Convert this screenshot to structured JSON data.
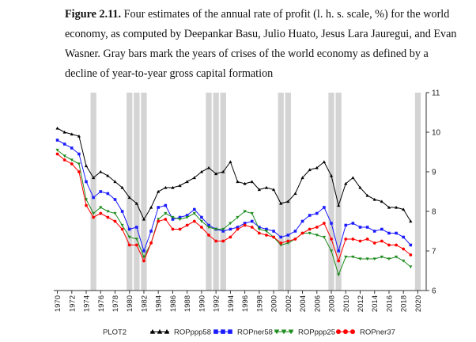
{
  "caption": {
    "figure_label": "Figure 2.11.",
    "text": " Four estimates of the annual rate of profit (l. h. s. scale, %) for the world economy, as computed by Deepankar Basu, Julio Huato, Jesus Lara Jauregui, and Evan Wasner. Gray bars mark the years of crises of the world economy as defined by a decline of year-to-year gross capital formation"
  },
  "chart_data": {
    "type": "line",
    "x": [
      1970,
      1971,
      1972,
      1973,
      1974,
      1975,
      1976,
      1977,
      1978,
      1979,
      1980,
      1981,
      1982,
      1983,
      1984,
      1985,
      1986,
      1987,
      1988,
      1989,
      1990,
      1991,
      1992,
      1993,
      1994,
      1995,
      1996,
      1997,
      1998,
      1999,
      2000,
      2001,
      2002,
      2003,
      2004,
      2005,
      2006,
      2007,
      2008,
      2009,
      2010,
      2011,
      2012,
      2013,
      2014,
      2015,
      2016,
      2017,
      2018,
      2019
    ],
    "xlim": [
      1969.5,
      2020.5
    ],
    "xticks": [
      1970,
      1972,
      1974,
      1976,
      1978,
      1980,
      1982,
      1984,
      1986,
      1988,
      1990,
      1992,
      1994,
      1996,
      1998,
      2000,
      2002,
      2004,
      2006,
      2008,
      2010,
      2012,
      2014,
      2016,
      2018,
      2020
    ],
    "y_right_ticks": [
      6,
      7,
      8,
      9,
      10,
      11
    ],
    "ylim": [
      6,
      11
    ],
    "y_axis_position": "right",
    "crisis_years": [
      1975,
      1980,
      1981,
      1982,
      1991,
      1992,
      1993,
      2001,
      2002,
      2008,
      2009,
      2020
    ],
    "legend": {
      "prefix": "PLOT2",
      "position": "bottom"
    },
    "series": [
      {
        "name": "ROPppp58",
        "color": "#000000",
        "marker": "triangle-up",
        "values": [
          10.1,
          10.0,
          9.95,
          9.9,
          9.15,
          8.85,
          9.0,
          8.9,
          8.75,
          8.6,
          8.35,
          8.2,
          7.8,
          8.1,
          8.5,
          8.6,
          8.6,
          8.65,
          8.75,
          8.85,
          9.0,
          9.1,
          8.95,
          9.0,
          9.25,
          8.75,
          8.7,
          8.75,
          8.55,
          8.6,
          8.55,
          8.2,
          8.25,
          8.45,
          8.85,
          9.05,
          9.1,
          9.25,
          8.9,
          8.15,
          8.7,
          8.85,
          8.6,
          8.4,
          8.3,
          8.25,
          8.1,
          8.1,
          8.05,
          7.75
        ]
      },
      {
        "name": "ROPner58",
        "color": "#1a1aff",
        "marker": "square",
        "values": [
          9.8,
          9.7,
          9.6,
          9.45,
          8.75,
          8.35,
          8.5,
          8.45,
          8.3,
          8.0,
          7.55,
          7.6,
          7.0,
          7.5,
          8.1,
          8.15,
          7.8,
          7.85,
          7.9,
          8.05,
          7.85,
          7.65,
          7.55,
          7.5,
          7.55,
          7.6,
          7.7,
          7.75,
          7.6,
          7.55,
          7.5,
          7.35,
          7.4,
          7.5,
          7.75,
          7.9,
          7.95,
          8.1,
          7.7,
          7.0,
          7.65,
          7.7,
          7.6,
          7.6,
          7.5,
          7.55,
          7.45,
          7.45,
          7.35,
          7.15
        ]
      },
      {
        "name": "ROPppp25",
        "color": "#1e8c1e",
        "marker": "triangle-down",
        "values": [
          9.55,
          9.4,
          9.3,
          9.2,
          8.3,
          7.95,
          8.1,
          8.0,
          7.95,
          7.65,
          7.35,
          7.3,
          6.85,
          7.2,
          7.8,
          7.95,
          7.85,
          7.8,
          7.85,
          7.95,
          7.75,
          7.6,
          7.55,
          7.55,
          7.7,
          7.85,
          8.0,
          7.95,
          7.55,
          7.5,
          7.35,
          7.15,
          7.2,
          7.3,
          7.45,
          7.45,
          7.4,
          7.35,
          7.0,
          6.4,
          6.85,
          6.85,
          6.8,
          6.8,
          6.8,
          6.85,
          6.8,
          6.85,
          6.75,
          6.6
        ]
      },
      {
        "name": "ROPner37",
        "color": "#ff0000",
        "marker": "circle",
        "values": [
          9.45,
          9.3,
          9.2,
          9.0,
          8.15,
          7.85,
          7.95,
          7.85,
          7.75,
          7.55,
          7.15,
          7.15,
          6.75,
          7.2,
          7.75,
          7.8,
          7.55,
          7.55,
          7.65,
          7.75,
          7.6,
          7.4,
          7.25,
          7.25,
          7.35,
          7.55,
          7.65,
          7.6,
          7.45,
          7.4,
          7.35,
          7.2,
          7.25,
          7.3,
          7.45,
          7.55,
          7.6,
          7.7,
          7.3,
          6.75,
          7.3,
          7.3,
          7.25,
          7.3,
          7.2,
          7.25,
          7.15,
          7.15,
          7.05,
          6.9
        ]
      }
    ]
  }
}
